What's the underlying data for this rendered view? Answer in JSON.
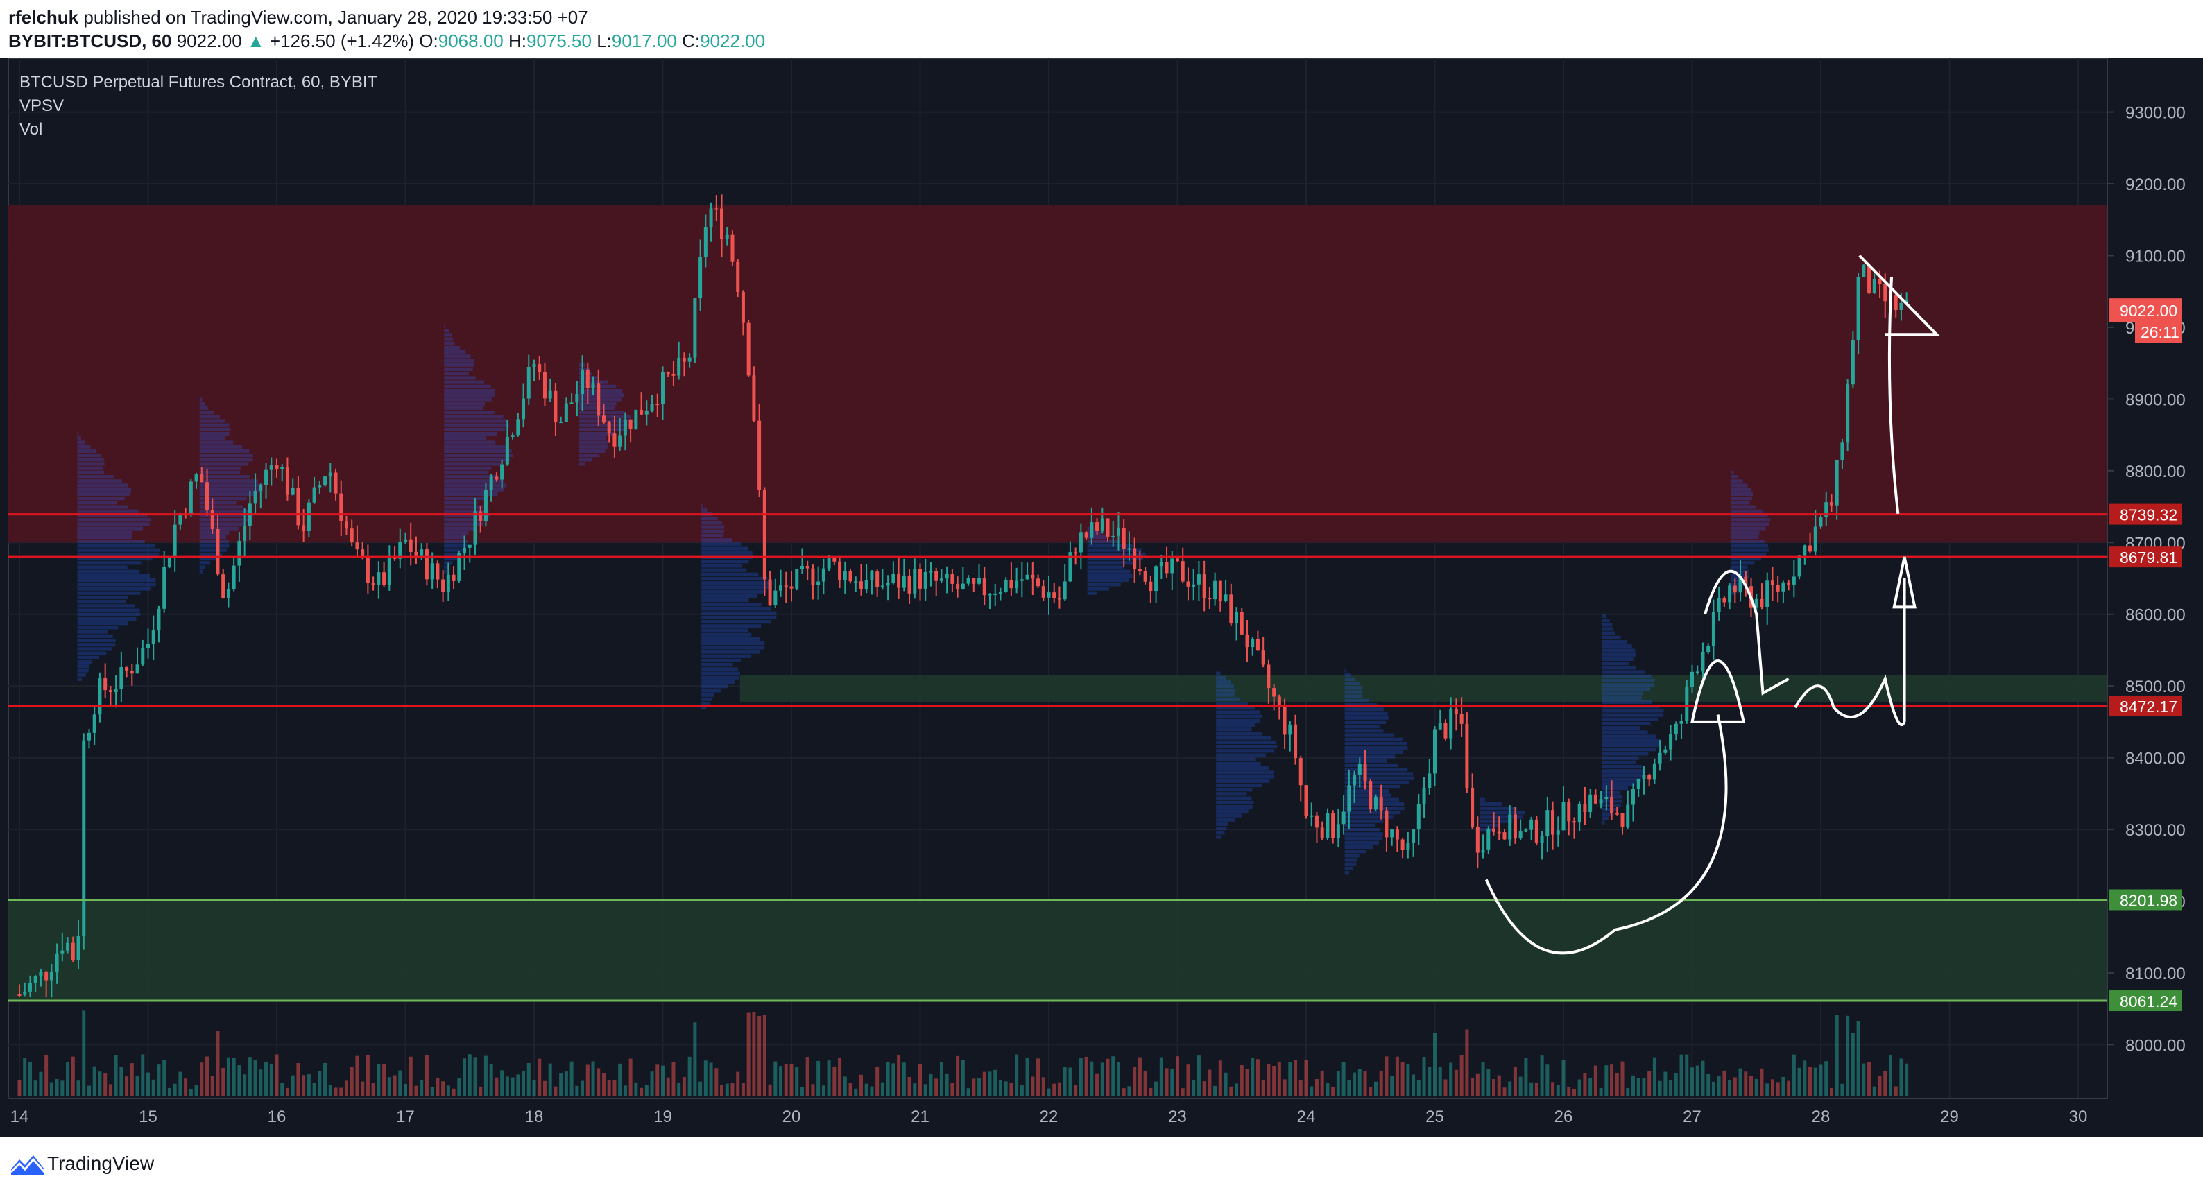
{
  "header": {
    "author": "rfelchuk",
    "published_text": "published on TradingView.com, January 28, 2020 19:33:50 +07",
    "symbol": "BYBIT:BTCUSD, 60",
    "last": "9022.00",
    "change": "+126.50 (+1.42%)",
    "o_label": "O:",
    "o_value": "9068.00",
    "h_label": "H:",
    "h_value": "9075.50",
    "l_label": "L:",
    "l_value": "9017.00",
    "c_label": "C:",
    "c_value": "9022.00"
  },
  "legend": {
    "title": "BTCUSD Perpetual Futures Contract, 60, BYBIT",
    "indicator1": "VPSV",
    "indicator2": "Vol"
  },
  "footer": {
    "brand": "TradingView"
  },
  "colors": {
    "background": "#131722",
    "up": "#26a69a",
    "down": "#ef5350",
    "resistance_zone": "#4a1520",
    "support_zone": "#1e3a2a",
    "line_red": "#e0141e",
    "line_green": "#6fb85a"
  },
  "chart_data": {
    "type": "candlestick",
    "title": "BTCUSD Perpetual Futures Contract, 60, BYBIT",
    "interval": "60",
    "ylim": [
      7925,
      9375
    ],
    "y_ticks": [
      "9300.00",
      "9200.00",
      "9100.00",
      "9000.00",
      "8900.00",
      "8800.00",
      "8700.00",
      "8600.00",
      "8500.00",
      "8400.00",
      "8300.00",
      "8200.00",
      "8100.00",
      "8000.00"
    ],
    "x_ticks": [
      "14",
      "15",
      "16",
      "17",
      "18",
      "19",
      "20",
      "21",
      "22",
      "23",
      "24",
      "25",
      "26",
      "27",
      "28",
      "29",
      "30"
    ],
    "price_lines": [
      {
        "value": 8739.32,
        "label": "8739.32",
        "color": "#e0141e"
      },
      {
        "value": 8679.81,
        "label": "8679.81",
        "color": "#e0141e"
      },
      {
        "value": 8472.17,
        "label": "8472.17",
        "color": "#e0141e"
      },
      {
        "value": 8201.98,
        "label": "8201.98",
        "color": "#6fb85a"
      },
      {
        "value": 8061.24,
        "label": "8061.24",
        "color": "#6fb85a"
      }
    ],
    "zones": [
      {
        "from": 8700,
        "to": 9170,
        "kind": "resistance"
      },
      {
        "from": 8061.24,
        "to": 8201.98,
        "kind": "support"
      },
      {
        "from": 8478,
        "to": 8515,
        "kind": "support",
        "start_day": 19.6
      }
    ],
    "last_price": {
      "value": 9022.0,
      "label": "9022.00",
      "countdown": "26:11"
    },
    "price_path": [
      [
        14.0,
        8070
      ],
      [
        14.2,
        8100
      ],
      [
        14.35,
        8150
      ],
      [
        14.45,
        8110
      ],
      [
        14.5,
        8420
      ],
      [
        14.6,
        8490
      ],
      [
        14.8,
        8510
      ],
      [
        15.0,
        8560
      ],
      [
        15.2,
        8720
      ],
      [
        15.4,
        8800
      ],
      [
        15.6,
        8620
      ],
      [
        15.8,
        8760
      ],
      [
        16.0,
        8820
      ],
      [
        16.2,
        8720
      ],
      [
        16.4,
        8810
      ],
      [
        16.6,
        8680
      ],
      [
        16.8,
        8640
      ],
      [
        17.0,
        8700
      ],
      [
        17.3,
        8640
      ],
      [
        17.5,
        8710
      ],
      [
        17.8,
        8850
      ],
      [
        18.0,
        8950
      ],
      [
        18.2,
        8870
      ],
      [
        18.4,
        8930
      ],
      [
        18.6,
        8850
      ],
      [
        18.8,
        8880
      ],
      [
        19.0,
        8920
      ],
      [
        19.2,
        8950
      ],
      [
        19.35,
        9170
      ],
      [
        19.5,
        9130
      ],
      [
        19.6,
        9050
      ],
      [
        19.7,
        8900
      ],
      [
        19.8,
        8620
      ],
      [
        20.0,
        8640
      ],
      [
        20.3,
        8670
      ],
      [
        20.6,
        8640
      ],
      [
        21.0,
        8650
      ],
      [
        21.4,
        8630
      ],
      [
        21.8,
        8650
      ],
      [
        22.1,
        8620
      ],
      [
        22.2,
        8700
      ],
      [
        22.4,
        8720
      ],
      [
        22.6,
        8700
      ],
      [
        22.8,
        8650
      ],
      [
        23.0,
        8660
      ],
      [
        23.3,
        8630
      ],
      [
        23.5,
        8580
      ],
      [
        23.7,
        8500
      ],
      [
        23.9,
        8420
      ],
      [
        24.0,
        8320
      ],
      [
        24.2,
        8300
      ],
      [
        24.4,
        8380
      ],
      [
        24.6,
        8310
      ],
      [
        24.8,
        8260
      ],
      [
        25.0,
        8430
      ],
      [
        25.2,
        8460
      ],
      [
        25.3,
        8280
      ],
      [
        25.5,
        8310
      ],
      [
        25.7,
        8290
      ],
      [
        25.9,
        8310
      ],
      [
        26.2,
        8340
      ],
      [
        26.5,
        8320
      ],
      [
        26.7,
        8400
      ],
      [
        26.9,
        8440
      ],
      [
        27.0,
        8520
      ],
      [
        27.1,
        8560
      ],
      [
        27.3,
        8640
      ],
      [
        27.5,
        8620
      ],
      [
        27.7,
        8640
      ],
      [
        27.9,
        8700
      ],
      [
        28.1,
        8760
      ],
      [
        28.2,
        8900
      ],
      [
        28.3,
        9080
      ],
      [
        28.4,
        9050
      ],
      [
        28.55,
        9030
      ],
      [
        28.7,
        9022
      ]
    ],
    "annotations": "hand-drawn white arrows and path"
  }
}
